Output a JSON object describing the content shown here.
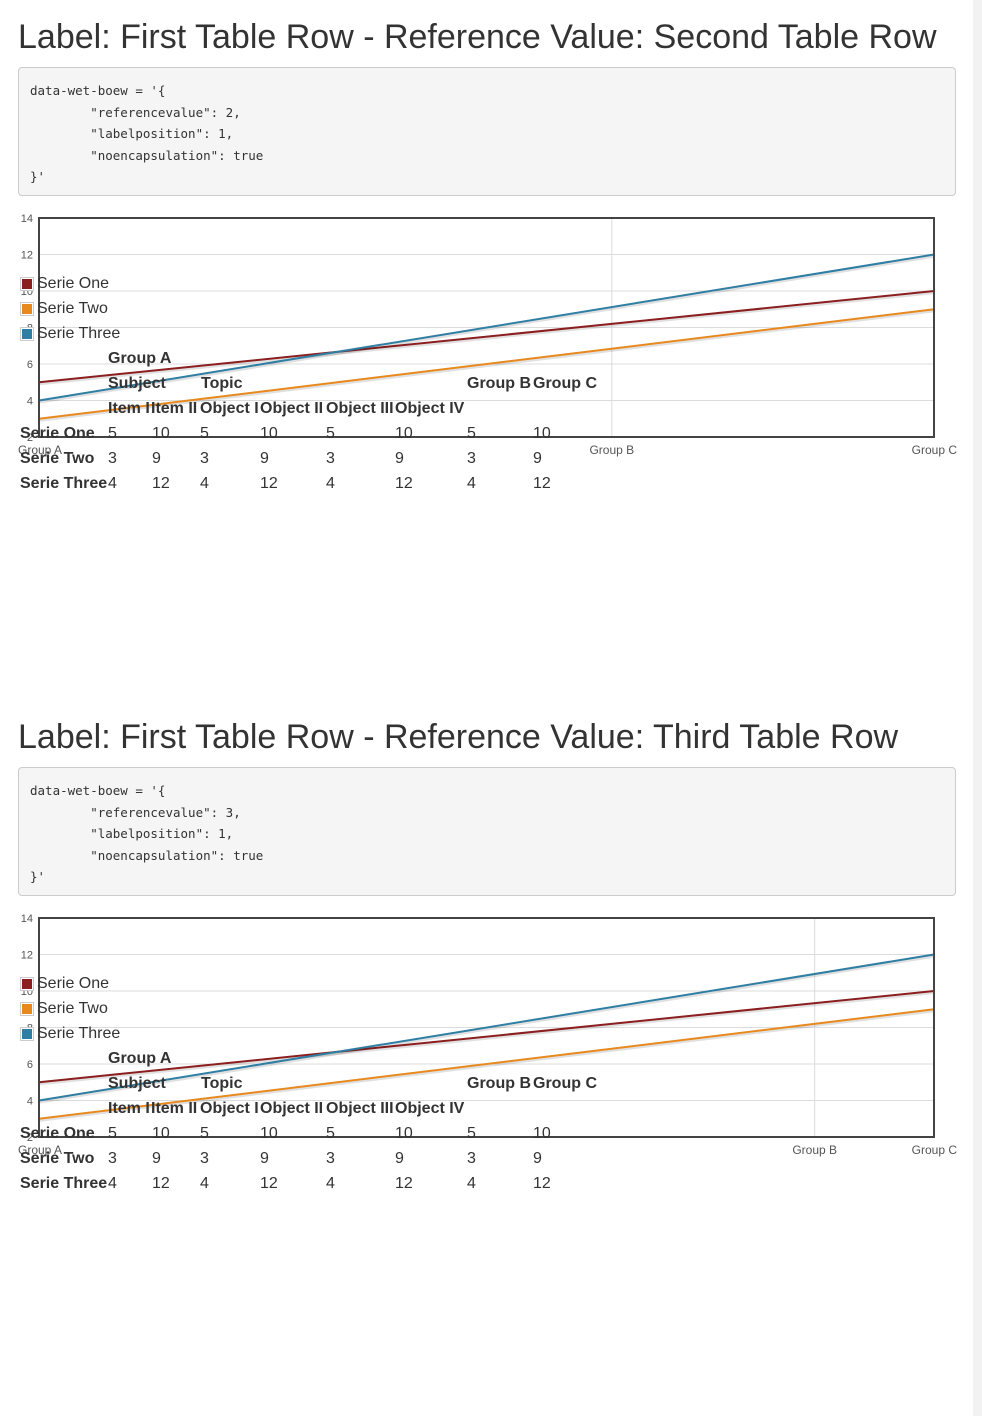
{
  "sections": [
    {
      "title": "Label: First Table Row - Reference Value: Second Table Row",
      "code": "data-wet-boew = '{\n        \"referencevalue\": 2,\n        \"labelposition\": 1,\n        \"noencapsulation\": true\n}'",
      "chart_data": {
        "type": "line",
        "title": "Label: First Table Row - Reference Value: Second Table Row",
        "xlabel": "",
        "ylabel": "",
        "ylim": [
          2,
          14
        ],
        "yticks": [
          2,
          4,
          6,
          8,
          10,
          12,
          14
        ],
        "grid": true,
        "legend_position": "bottom-left",
        "x": [
          5,
          10,
          5,
          10,
          5,
          10,
          5,
          10
        ],
        "xlim": [
          5,
          10
        ],
        "x_tick_labels": [
          "Group A",
          "Group B",
          "Group C"
        ],
        "x_tick_label_positions": [
          5,
          8.2,
          10
        ],
        "categories": [
          "Item I",
          "Item II",
          "Object I",
          "Object II",
          "Object III",
          "Object IV",
          "Group B",
          "Group C"
        ],
        "series": [
          {
            "name": "Serie One",
            "color": "#8b1e1e",
            "values": [
              5,
              10,
              5,
              10,
              5,
              10,
              5,
              10
            ]
          },
          {
            "name": "Serie Two",
            "color": "#e8891e",
            "values": [
              3,
              9,
              3,
              9,
              3,
              9,
              3,
              9
            ]
          },
          {
            "name": "Serie Three",
            "color": "#2f7ea3",
            "values": [
              4,
              12,
              4,
              12,
              4,
              12,
              4,
              12
            ]
          }
        ]
      },
      "table": {
        "header_row1": [
          "Group A"
        ],
        "header_row2": [
          "Subject",
          "Topic",
          "Group B",
          "Group C"
        ],
        "header_row3": [
          "Item I",
          "Item II",
          "Object I",
          "Object II",
          "Object III",
          "Object IV"
        ],
        "rows": [
          {
            "label": "Serie One",
            "cells": [
              "5",
              "10",
              "5",
              "10",
              "5",
              "10",
              "5",
              "10"
            ]
          },
          {
            "label": "Serie Two",
            "cells": [
              "3",
              "9",
              "3",
              "9",
              "3",
              "9",
              "3",
              "9"
            ]
          },
          {
            "label": "Serie Three",
            "cells": [
              "4",
              "12",
              "4",
              "12",
              "4",
              "12",
              "4",
              "12"
            ]
          }
        ]
      }
    },
    {
      "title": "Label: First Table Row - Reference Value: Third Table Row",
      "code": "data-wet-boew = '{\n        \"referencevalue\": 3,\n        \"labelposition\": 1,\n        \"noencapsulation\": true\n}'",
      "chart_data": {
        "type": "line",
        "title": "Label: First Table Row - Reference Value: Third Table Row",
        "xlabel": "",
        "ylabel": "",
        "ylim": [
          2,
          14
        ],
        "yticks": [
          2,
          4,
          6,
          8,
          10,
          12,
          14
        ],
        "grid": true,
        "legend_position": "bottom-left",
        "x": [
          3,
          9,
          3,
          9,
          3,
          9,
          3,
          9
        ],
        "xlim": [
          3,
          9
        ],
        "x_tick_labels": [
          "Group A",
          "Group B",
          "Group C"
        ],
        "x_tick_label_positions": [
          3,
          8.2,
          9
        ],
        "categories": [
          "Item I",
          "Item II",
          "Object I",
          "Object II",
          "Object III",
          "Object IV",
          "Group B",
          "Group C"
        ],
        "series": [
          {
            "name": "Serie One",
            "color": "#8b1e1e",
            "values": [
              5,
              10,
              5,
              10,
              5,
              10,
              5,
              10
            ]
          },
          {
            "name": "Serie Two",
            "color": "#e8891e",
            "values": [
              3,
              9,
              3,
              9,
              3,
              9,
              3,
              9
            ]
          },
          {
            "name": "Serie Three",
            "color": "#2f7ea3",
            "values": [
              4,
              12,
              4,
              12,
              4,
              12,
              4,
              12
            ]
          }
        ]
      },
      "table": {
        "header_row1": [
          "Group A"
        ],
        "header_row2": [
          "Subject",
          "Topic",
          "Group B",
          "Group C"
        ],
        "header_row3": [
          "Item I",
          "Item II",
          "Object I",
          "Object II",
          "Object III",
          "Object IV"
        ],
        "rows": [
          {
            "label": "Serie One",
            "cells": [
              "5",
              "10",
              "5",
              "10",
              "5",
              "10",
              "5",
              "10"
            ]
          },
          {
            "label": "Serie Two",
            "cells": [
              "3",
              "9",
              "3",
              "9",
              "3",
              "9",
              "3",
              "9"
            ]
          },
          {
            "label": "Serie Three",
            "cells": [
              "4",
              "12",
              "4",
              "12",
              "4",
              "12",
              "4",
              "12"
            ]
          }
        ]
      }
    }
  ]
}
